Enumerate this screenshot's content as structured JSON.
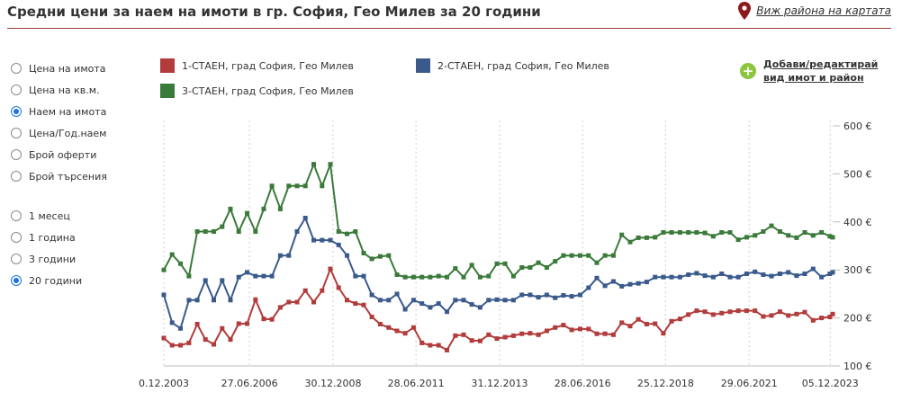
{
  "header": {
    "title": "Средни цени за наем на имоти в гр. София, Гео Милев за 20 години",
    "map_link": "Виж района на картата"
  },
  "options": {
    "metrics": [
      {
        "label": "Цена на имота",
        "selected": false
      },
      {
        "label": "Цена на кв.м.",
        "selected": false
      },
      {
        "label": "Наем на имота",
        "selected": true
      },
      {
        "label": "Цена/Год.наем",
        "selected": false
      },
      {
        "label": "Брой оферти",
        "selected": false
      },
      {
        "label": "Брой търсения",
        "selected": false
      }
    ],
    "periods": [
      {
        "label": "1 месец",
        "selected": false
      },
      {
        "label": "1 година",
        "selected": false
      },
      {
        "label": "3 години",
        "selected": false
      },
      {
        "label": "20 години",
        "selected": true
      }
    ]
  },
  "add_link": {
    "line1": "Добави/редактирай",
    "line2": "вид имот и район"
  },
  "colors": {
    "red": "#b23b3b",
    "blue": "#3a5a8c",
    "green": "#3a7a3a",
    "accent": "#a33a3a",
    "radio": "#1a73e8"
  },
  "chart_data": {
    "type": "line",
    "xlabel": "",
    "ylabel": "",
    "ylim": [
      100,
      600
    ],
    "yticks": [
      100,
      200,
      300,
      400,
      500,
      600
    ],
    "ytick_labels": [
      "100 €",
      "200 €",
      "300 €",
      "400 €",
      "500 €",
      "600 €"
    ],
    "xlim": [
      "2003-12-01",
      "2024-01-01"
    ],
    "xticks": [
      "2003-12-01",
      "2006-06-27",
      "2008-12-30",
      "2011-06-28",
      "2013-12-31",
      "2016-06-28",
      "2018-12-25",
      "2021-06-29",
      "2023-12-05"
    ],
    "xtick_labels": [
      "0.12.2003",
      "27.06.2006",
      "30.12.2008",
      "28.06.2011",
      "31.12.2013",
      "28.06.2016",
      "25.12.2018",
      "29.06.2021",
      "05.12.2023"
    ],
    "grid": {
      "vertical": true,
      "horizontal": false
    },
    "legend_position": "top",
    "series": [
      {
        "name": "1-СТАЕН, град София, Гео Милев",
        "color": "#b23b3b",
        "points": [
          [
            "2003-12-01",
            158
          ],
          [
            "2004-03-01",
            143
          ],
          [
            "2004-06-01",
            143
          ],
          [
            "2004-09-01",
            148
          ],
          [
            "2004-12-01",
            187
          ],
          [
            "2005-03-01",
            155
          ],
          [
            "2005-06-01",
            145
          ],
          [
            "2005-09-01",
            178
          ],
          [
            "2005-12-01",
            155
          ],
          [
            "2006-03-01",
            188
          ],
          [
            "2006-06-01",
            188
          ],
          [
            "2006-09-01",
            238
          ],
          [
            "2006-12-01",
            198
          ],
          [
            "2007-03-01",
            197
          ],
          [
            "2007-06-01",
            222
          ],
          [
            "2007-09-01",
            233
          ],
          [
            "2007-12-01",
            233
          ],
          [
            "2008-03-01",
            257
          ],
          [
            "2008-06-01",
            233
          ],
          [
            "2008-09-01",
            257
          ],
          [
            "2008-12-01",
            302
          ],
          [
            "2009-03-01",
            263
          ],
          [
            "2009-06-01",
            237
          ],
          [
            "2009-09-01",
            230
          ],
          [
            "2009-12-01",
            227
          ],
          [
            "2010-03-01",
            202
          ],
          [
            "2010-06-01",
            187
          ],
          [
            "2010-09-01",
            180
          ],
          [
            "2010-12-01",
            173
          ],
          [
            "2011-03-01",
            168
          ],
          [
            "2011-06-01",
            180
          ],
          [
            "2011-09-01",
            148
          ],
          [
            "2011-12-01",
            143
          ],
          [
            "2012-03-01",
            143
          ],
          [
            "2012-06-01",
            133
          ],
          [
            "2012-09-01",
            163
          ],
          [
            "2012-12-01",
            165
          ],
          [
            "2013-03-01",
            153
          ],
          [
            "2013-06-01",
            152
          ],
          [
            "2013-09-01",
            165
          ],
          [
            "2013-12-01",
            157
          ],
          [
            "2014-03-01",
            160
          ],
          [
            "2014-06-01",
            163
          ],
          [
            "2014-09-01",
            167
          ],
          [
            "2014-12-01",
            168
          ],
          [
            "2015-03-01",
            165
          ],
          [
            "2015-06-01",
            173
          ],
          [
            "2015-09-01",
            180
          ],
          [
            "2015-12-01",
            185
          ],
          [
            "2016-03-01",
            175
          ],
          [
            "2016-06-01",
            177
          ],
          [
            "2016-09-01",
            177
          ],
          [
            "2016-12-01",
            167
          ],
          [
            "2017-03-01",
            167
          ],
          [
            "2017-06-01",
            165
          ],
          [
            "2017-09-01",
            190
          ],
          [
            "2017-12-01",
            183
          ],
          [
            "2018-03-01",
            197
          ],
          [
            "2018-06-01",
            187
          ],
          [
            "2018-09-01",
            188
          ],
          [
            "2018-12-01",
            168
          ],
          [
            "2019-03-01",
            193
          ],
          [
            "2019-06-01",
            198
          ],
          [
            "2019-09-01",
            207
          ],
          [
            "2019-12-01",
            215
          ],
          [
            "2020-03-01",
            213
          ],
          [
            "2020-06-01",
            207
          ],
          [
            "2020-09-01",
            210
          ],
          [
            "2020-12-01",
            213
          ],
          [
            "2021-03-01",
            215
          ],
          [
            "2021-06-01",
            215
          ],
          [
            "2021-09-01",
            215
          ],
          [
            "2021-12-01",
            203
          ],
          [
            "2022-03-01",
            205
          ],
          [
            "2022-06-01",
            213
          ],
          [
            "2022-09-01",
            205
          ],
          [
            "2022-12-01",
            208
          ],
          [
            "2023-03-01",
            212
          ],
          [
            "2023-06-01",
            195
          ],
          [
            "2023-09-01",
            200
          ],
          [
            "2023-12-01",
            202
          ],
          [
            "2024-01-01",
            208
          ]
        ]
      },
      {
        "name": "2-СТАЕН, град София, Гео Милев",
        "color": "#3a5a8c",
        "points": [
          [
            "2003-12-01",
            248
          ],
          [
            "2004-03-01",
            190
          ],
          [
            "2004-06-01",
            178
          ],
          [
            "2004-09-01",
            237
          ],
          [
            "2004-12-01",
            237
          ],
          [
            "2005-03-01",
            278
          ],
          [
            "2005-06-01",
            237
          ],
          [
            "2005-09-01",
            278
          ],
          [
            "2005-12-01",
            237
          ],
          [
            "2006-03-01",
            285
          ],
          [
            "2006-06-01",
            295
          ],
          [
            "2006-09-01",
            287
          ],
          [
            "2006-12-01",
            287
          ],
          [
            "2007-03-01",
            287
          ],
          [
            "2007-06-01",
            330
          ],
          [
            "2007-09-01",
            330
          ],
          [
            "2007-12-01",
            380
          ],
          [
            "2008-03-01",
            408
          ],
          [
            "2008-06-01",
            362
          ],
          [
            "2008-09-01",
            362
          ],
          [
            "2008-12-01",
            362
          ],
          [
            "2009-03-01",
            352
          ],
          [
            "2009-06-01",
            330
          ],
          [
            "2009-09-01",
            287
          ],
          [
            "2009-12-01",
            287
          ],
          [
            "2010-03-01",
            248
          ],
          [
            "2010-06-01",
            237
          ],
          [
            "2010-09-01",
            237
          ],
          [
            "2010-12-01",
            250
          ],
          [
            "2011-03-01",
            218
          ],
          [
            "2011-06-01",
            237
          ],
          [
            "2011-09-01",
            230
          ],
          [
            "2011-12-01",
            222
          ],
          [
            "2012-03-01",
            230
          ],
          [
            "2012-06-01",
            213
          ],
          [
            "2012-09-01",
            237
          ],
          [
            "2012-12-01",
            237
          ],
          [
            "2013-03-01",
            228
          ],
          [
            "2013-06-01",
            222
          ],
          [
            "2013-09-01",
            237
          ],
          [
            "2013-12-01",
            238
          ],
          [
            "2014-03-01",
            237
          ],
          [
            "2014-06-01",
            237
          ],
          [
            "2014-09-01",
            248
          ],
          [
            "2014-12-01",
            248
          ],
          [
            "2015-03-01",
            243
          ],
          [
            "2015-06-01",
            248
          ],
          [
            "2015-09-01",
            242
          ],
          [
            "2015-12-01",
            247
          ],
          [
            "2016-03-01",
            245
          ],
          [
            "2016-06-01",
            248
          ],
          [
            "2016-09-01",
            263
          ],
          [
            "2016-12-01",
            283
          ],
          [
            "2017-03-01",
            267
          ],
          [
            "2017-06-01",
            276
          ],
          [
            "2017-09-01",
            266
          ],
          [
            "2017-12-01",
            270
          ],
          [
            "2018-03-01",
            272
          ],
          [
            "2018-06-01",
            275
          ],
          [
            "2018-09-01",
            285
          ],
          [
            "2018-12-01",
            285
          ],
          [
            "2019-03-01",
            285
          ],
          [
            "2019-06-01",
            285
          ],
          [
            "2019-09-01",
            290
          ],
          [
            "2019-12-01",
            293
          ],
          [
            "2020-03-01",
            288
          ],
          [
            "2020-06-01",
            285
          ],
          [
            "2020-09-01",
            292
          ],
          [
            "2020-12-01",
            285
          ],
          [
            "2021-03-01",
            285
          ],
          [
            "2021-06-01",
            292
          ],
          [
            "2021-09-01",
            296
          ],
          [
            "2021-12-01",
            290
          ],
          [
            "2022-03-01",
            287
          ],
          [
            "2022-06-01",
            292
          ],
          [
            "2022-09-01",
            295
          ],
          [
            "2022-12-01",
            288
          ],
          [
            "2023-03-01",
            292
          ],
          [
            "2023-06-01",
            302
          ],
          [
            "2023-09-01",
            285
          ],
          [
            "2023-12-01",
            292
          ],
          [
            "2024-01-01",
            295
          ]
        ]
      },
      {
        "name": "3-СТАЕН, град София, Гео Милев",
        "color": "#3a7a3a",
        "points": [
          [
            "2003-12-01",
            300
          ],
          [
            "2004-03-01",
            332
          ],
          [
            "2004-06-01",
            313
          ],
          [
            "2004-09-01",
            287
          ],
          [
            "2004-12-01",
            380
          ],
          [
            "2005-03-01",
            380
          ],
          [
            "2005-06-01",
            380
          ],
          [
            "2005-09-01",
            390
          ],
          [
            "2005-12-01",
            427
          ],
          [
            "2006-03-01",
            380
          ],
          [
            "2006-06-01",
            418
          ],
          [
            "2006-09-01",
            380
          ],
          [
            "2006-12-01",
            427
          ],
          [
            "2007-03-01",
            475
          ],
          [
            "2007-06-01",
            427
          ],
          [
            "2007-09-01",
            475
          ],
          [
            "2007-12-01",
            475
          ],
          [
            "2008-03-01",
            475
          ],
          [
            "2008-06-01",
            520
          ],
          [
            "2008-09-01",
            475
          ],
          [
            "2008-12-01",
            520
          ],
          [
            "2009-03-01",
            380
          ],
          [
            "2009-06-01",
            375
          ],
          [
            "2009-09-01",
            380
          ],
          [
            "2009-12-01",
            335
          ],
          [
            "2010-03-01",
            323
          ],
          [
            "2010-06-01",
            328
          ],
          [
            "2010-09-01",
            330
          ],
          [
            "2010-12-01",
            290
          ],
          [
            "2011-03-01",
            285
          ],
          [
            "2011-06-01",
            285
          ],
          [
            "2011-09-01",
            285
          ],
          [
            "2011-12-01",
            285
          ],
          [
            "2012-03-01",
            287
          ],
          [
            "2012-06-01",
            285
          ],
          [
            "2012-09-01",
            303
          ],
          [
            "2012-12-01",
            285
          ],
          [
            "2013-03-01",
            310
          ],
          [
            "2013-06-01",
            285
          ],
          [
            "2013-09-01",
            287
          ],
          [
            "2013-12-01",
            313
          ],
          [
            "2014-03-01",
            313
          ],
          [
            "2014-06-01",
            287
          ],
          [
            "2014-09-01",
            305
          ],
          [
            "2014-12-01",
            305
          ],
          [
            "2015-03-01",
            315
          ],
          [
            "2015-06-01",
            305
          ],
          [
            "2015-09-01",
            318
          ],
          [
            "2015-12-01",
            330
          ],
          [
            "2016-03-01",
            330
          ],
          [
            "2016-06-01",
            330
          ],
          [
            "2016-09-01",
            330
          ],
          [
            "2016-12-01",
            315
          ],
          [
            "2017-03-01",
            330
          ],
          [
            "2017-06-01",
            330
          ],
          [
            "2017-09-01",
            373
          ],
          [
            "2017-12-01",
            358
          ],
          [
            "2018-03-01",
            367
          ],
          [
            "2018-06-01",
            367
          ],
          [
            "2018-09-01",
            368
          ],
          [
            "2018-12-01",
            378
          ],
          [
            "2019-03-01",
            378
          ],
          [
            "2019-06-01",
            378
          ],
          [
            "2019-09-01",
            378
          ],
          [
            "2019-12-01",
            378
          ],
          [
            "2020-03-01",
            377
          ],
          [
            "2020-06-01",
            370
          ],
          [
            "2020-09-01",
            378
          ],
          [
            "2020-12-01",
            378
          ],
          [
            "2021-03-01",
            363
          ],
          [
            "2021-06-01",
            368
          ],
          [
            "2021-09-01",
            372
          ],
          [
            "2021-12-01",
            380
          ],
          [
            "2022-03-01",
            392
          ],
          [
            "2022-06-01",
            380
          ],
          [
            "2022-09-01",
            372
          ],
          [
            "2022-12-01",
            367
          ],
          [
            "2023-03-01",
            378
          ],
          [
            "2023-06-01",
            372
          ],
          [
            "2023-09-01",
            378
          ],
          [
            "2023-12-01",
            370
          ],
          [
            "2024-01-01",
            368
          ]
        ]
      }
    ]
  }
}
